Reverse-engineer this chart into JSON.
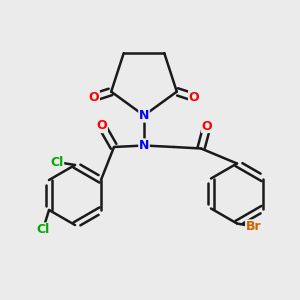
{
  "bg_color": "#ebebeb",
  "bond_color": "#1a1a1a",
  "bond_lw": 1.8,
  "atom_colors": {
    "O": "#ff0000",
    "N": "#0000ff",
    "Cl": "#00aa00",
    "Br": "#cc6600",
    "C": "#1a1a1a"
  },
  "font_size": 9,
  "bold_font_size": 9
}
